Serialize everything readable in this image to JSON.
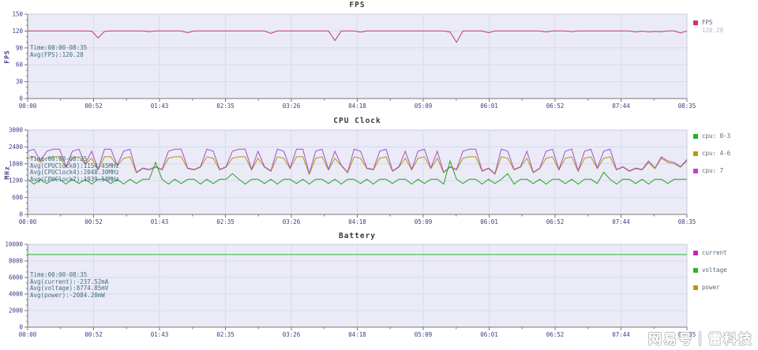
{
  "watermark": {
    "text": "网易号｜雷科技"
  },
  "palette": {
    "plot_bg": "#eaebf7",
    "grid": "#d9d9ea",
    "plot_border": "#c9c9dd",
    "axis": "#777777",
    "tick_text": "#3d3d85",
    "title_text": "#3b3b3b",
    "tooltip_text": "#3f6d75",
    "fps_line": "#c13b5f",
    "cpu_small_line": "#21a621",
    "cpu_mid_line": "#b09a10",
    "cpu_prime_line": "#ab4fc4",
    "current_color": "#c219ac",
    "voltage_color": "#2eb22e",
    "power_color": "#b09a10"
  },
  "chart_data": [
    {
      "type": "line",
      "title": "FPS",
      "ylabel": "FPS",
      "ylim": [
        0,
        150
      ],
      "yticks": [
        0,
        30,
        60,
        90,
        120,
        150
      ],
      "xticks": [
        "00:00",
        "00:52",
        "01:43",
        "02:35",
        "03:26",
        "04:18",
        "05:09",
        "06:01",
        "06:52",
        "07:44",
        "08:35"
      ],
      "grid": true,
      "legend_position": "right",
      "tooltip": [
        "Time:00:00-08:35",
        "Avg(FPS):120.28"
      ],
      "legend": [
        {
          "label": "FPS",
          "value": "120.28",
          "color": "#d0355f"
        }
      ],
      "series": [
        {
          "name": "FPS",
          "color": "#c13b5f",
          "values": [
            120.2,
            120.3,
            120.2,
            120.2,
            120.3,
            120.2,
            120.2,
            120.3,
            120.2,
            120.2,
            119.8,
            108,
            119.5,
            120.2,
            120.2,
            120.2,
            120.2,
            120.2,
            120.2,
            119,
            120.2,
            120.2,
            120.2,
            120.2,
            120.2,
            117,
            120.2,
            120.2,
            120.2,
            120.2,
            120.2,
            120.2,
            120.2,
            120.2,
            120.2,
            120.2,
            120.2,
            120.2,
            116,
            120.2,
            120.2,
            120.2,
            120.2,
            120.2,
            120.2,
            120.2,
            120.2,
            120.2,
            103,
            120.2,
            120.2,
            120.2,
            118,
            120.2,
            120.2,
            120.2,
            120.2,
            120.2,
            120.2,
            120.2,
            120.2,
            120.2,
            120.2,
            120.2,
            120.2,
            120.2,
            118.5,
            100,
            120.2,
            120.2,
            120.2,
            120.2,
            117,
            120.2,
            120.2,
            120.2,
            120.2,
            120.2,
            120.2,
            120.2,
            120.2,
            118.5,
            120.2,
            120.2,
            120.2,
            119,
            120.2,
            120.2,
            120.2,
            120.2,
            120.2,
            120.2,
            120.2,
            120.2,
            120.2,
            118.5,
            119.8,
            118.5,
            119.5,
            118.8,
            120.2,
            120.2,
            116.5,
            120.2
          ]
        }
      ]
    },
    {
      "type": "line",
      "title": "CPU Clock",
      "ylabel": "MHz",
      "ylim": [
        0,
        3000
      ],
      "yticks": [
        0,
        600,
        1200,
        1800,
        2400,
        3000
      ],
      "xticks": [
        "00:00",
        "00:52",
        "01:43",
        "02:35",
        "03:26",
        "04:18",
        "05:09",
        "06:01",
        "06:52",
        "07:44",
        "08:35"
      ],
      "grid": true,
      "legend_position": "right",
      "tooltip": [
        "Time:00:00-08:35",
        "Avg(CPUClock0):1154.45MHz",
        "Avg(CPUClock4):2048.30MHz",
        "Avg(CPUClock7):1939.58MHz"
      ],
      "legend": [
        {
          "label": "cpu: 0-3",
          "color": "#21b021"
        },
        {
          "label": "cpu: 4-6",
          "color": "#b89b00"
        },
        {
          "label": "cpu: 7",
          "color": "#bb44cc"
        }
      ],
      "series": [
        {
          "name": "cpu 4-6",
          "color": "#b09a10",
          "values": [
            2000,
            2050,
            1850,
            2000,
            2050,
            2050,
            1680,
            2000,
            2050,
            1780,
            2000,
            1580,
            2050,
            2050,
            1730,
            2000,
            2050,
            1480,
            1630,
            1580,
            1680,
            1580,
            2000,
            2050,
            2050,
            1630,
            1580,
            1680,
            2050,
            2000,
            1580,
            1680,
            2000,
            2050,
            2050,
            1580,
            2000,
            1680,
            1530,
            2050,
            2000,
            1630,
            2050,
            2050,
            1430,
            2000,
            2050,
            1580,
            2000,
            1730,
            1480,
            2050,
            2000,
            1630,
            1580,
            2000,
            2050,
            1530,
            1680,
            2000,
            1580,
            2000,
            2050,
            1630,
            2000,
            1480,
            1680,
            1580,
            2000,
            2050,
            2050,
            1530,
            1630,
            1430,
            2050,
            2000,
            1580,
            1680,
            2000,
            1480,
            1630,
            2000,
            2050,
            1580,
            2000,
            2050,
            1530,
            2000,
            2050,
            1630,
            2000,
            2050,
            1580,
            1680,
            1530,
            1630,
            1580,
            1850,
            1630,
            2000,
            1850,
            1800,
            1680,
            1900
          ]
        },
        {
          "name": "cpu 7",
          "color": "#ab4fc4",
          "values": [
            2250,
            2320,
            1900,
            2250,
            2320,
            2320,
            1700,
            2250,
            2320,
            1800,
            2250,
            1600,
            2320,
            2320,
            1750,
            2250,
            2320,
            1500,
            1650,
            1600,
            1700,
            1600,
            2250,
            2320,
            2320,
            1650,
            1600,
            1700,
            2320,
            2250,
            1600,
            1700,
            2250,
            2320,
            2320,
            1600,
            2250,
            1700,
            1550,
            2320,
            2250,
            1650,
            2320,
            2320,
            1450,
            2250,
            2320,
            1600,
            2250,
            1750,
            1500,
            2320,
            2250,
            1650,
            1600,
            2250,
            2320,
            1550,
            1700,
            2250,
            1600,
            2250,
            2320,
            1650,
            2250,
            1500,
            1700,
            1600,
            2250,
            2320,
            2320,
            1550,
            1650,
            1450,
            2320,
            2250,
            1600,
            1700,
            2250,
            1500,
            1650,
            2250,
            2320,
            1600,
            2250,
            2320,
            1550,
            2250,
            2320,
            1650,
            2250,
            2320,
            1600,
            1700,
            1550,
            1650,
            1600,
            1900,
            1650,
            2050,
            1900,
            1850,
            1700,
            1950
          ]
        },
        {
          "name": "cpu 0-3",
          "color": "#21a621",
          "values": [
            1250,
            1080,
            1250,
            1100,
            1250,
            1250,
            1080,
            1250,
            1100,
            1250,
            1080,
            1250,
            1250,
            1100,
            1250,
            1080,
            1250,
            1100,
            1250,
            1250,
            1850,
            1250,
            1080,
            1250,
            1100,
            1250,
            1250,
            1080,
            1250,
            1100,
            1250,
            1250,
            1450,
            1250,
            1080,
            1250,
            1250,
            1100,
            1250,
            1080,
            1250,
            1250,
            1100,
            1250,
            1080,
            1250,
            1250,
            1100,
            1250,
            1080,
            1250,
            1250,
            1100,
            1250,
            1080,
            1250,
            1250,
            1100,
            1250,
            1250,
            1080,
            1250,
            1100,
            1250,
            1250,
            1080,
            1900,
            1250,
            1100,
            1250,
            1250,
            1080,
            1250,
            1100,
            1250,
            1450,
            1080,
            1250,
            1250,
            1100,
            1250,
            1080,
            1250,
            1250,
            1100,
            1250,
            1080,
            1250,
            1250,
            1100,
            1500,
            1250,
            1080,
            1250,
            1250,
            1100,
            1250,
            1080,
            1250,
            1250,
            1100,
            1250,
            1250,
            1250
          ]
        }
      ]
    },
    {
      "type": "line",
      "title": "Battery",
      "ylabel": "",
      "ylim": [
        0,
        10000
      ],
      "yticks": [
        0,
        2000,
        4000,
        6000,
        8000,
        10000
      ],
      "xticks": [
        "00:00",
        "00:52",
        "01:43",
        "02:35",
        "03:26",
        "04:18",
        "05:09",
        "06:01",
        "06:52",
        "07:44",
        "08:35"
      ],
      "grid": true,
      "legend_position": "right",
      "tooltip": [
        "Time:00:00-08:35",
        "Avg(current):-237.52mA",
        "Avg(voltage):8774.85mV",
        "Avg(power):-2084.20mW"
      ],
      "legend": [
        {
          "label": "current",
          "color": "#cc22bb"
        },
        {
          "label": "voltage",
          "color": "#2eb22e"
        },
        {
          "label": "power",
          "color": "#b89b00"
        }
      ],
      "series": [
        {
          "name": "current",
          "color": "#c219ac",
          "values": [
            -237.52,
            -237.52
          ]
        },
        {
          "name": "voltage",
          "color": "#2eb22e",
          "values": [
            8774.85,
            8774.85
          ]
        },
        {
          "name": "power",
          "color": "#b09a10",
          "values": [
            -2084.2,
            -2084.2
          ]
        }
      ]
    }
  ]
}
